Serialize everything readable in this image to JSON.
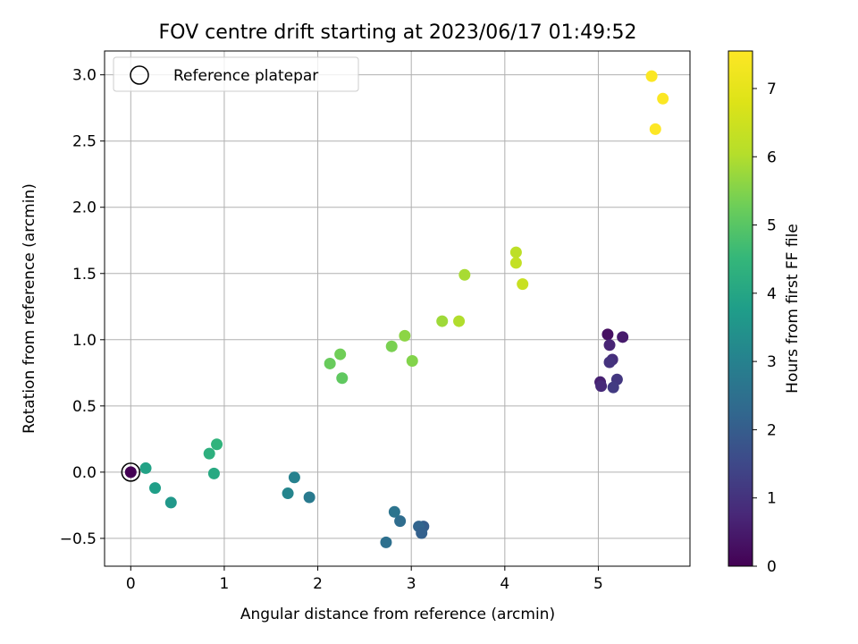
{
  "chart_data": {
    "type": "scatter",
    "title": "FOV centre drift starting at 2023/06/17 01:49:52",
    "xlabel": "Angular distance from reference (arcmin)",
    "ylabel": "Rotation from reference (arcmin)",
    "xlim": [
      -0.28,
      5.98
    ],
    "ylim": [
      -0.71,
      3.18
    ],
    "xticks": [
      0,
      1,
      2,
      3,
      4,
      5
    ],
    "xtick_labels": [
      "0",
      "1",
      "2",
      "3",
      "4",
      "5"
    ],
    "yticks": [
      -0.5,
      0.0,
      0.5,
      1.0,
      1.5,
      2.0,
      2.5,
      3.0
    ],
    "ytick_labels": [
      "−0.5",
      "0.0",
      "0.5",
      "1.0",
      "1.5",
      "2.0",
      "2.5",
      "3.0"
    ],
    "grid": true,
    "colormap": "viridis",
    "colorbar": {
      "label": "Hours from first FF file",
      "range": [
        0,
        7.55
      ],
      "ticks": [
        0,
        1,
        2,
        3,
        4,
        5,
        6,
        7
      ],
      "tick_labels": [
        "0",
        "1",
        "2",
        "3",
        "4",
        "5",
        "6",
        "7"
      ]
    },
    "legend": {
      "entries": [
        {
          "label": "Reference platepar",
          "marker": "open-circle"
        }
      ],
      "placement": "upper-left"
    },
    "reference_point": {
      "x": 0.0,
      "y": 0.0
    },
    "points": [
      {
        "x": 0.0,
        "y": 0.0,
        "hours": 0.0
      },
      {
        "x": 5.1,
        "y": 1.04,
        "hours": 0.3
      },
      {
        "x": 5.26,
        "y": 1.02,
        "hours": 0.5
      },
      {
        "x": 5.12,
        "y": 0.96,
        "hours": 0.7
      },
      {
        "x": 5.15,
        "y": 0.85,
        "hours": 0.9
      },
      {
        "x": 5.12,
        "y": 0.83,
        "hours": 1.0
      },
      {
        "x": 5.2,
        "y": 0.7,
        "hours": 1.1
      },
      {
        "x": 5.02,
        "y": 0.68,
        "hours": 0.6
      },
      {
        "x": 5.03,
        "y": 0.65,
        "hours": 0.8
      },
      {
        "x": 5.16,
        "y": 0.64,
        "hours": 1.2
      },
      {
        "x": 3.13,
        "y": -0.41,
        "hours": 2.0
      },
      {
        "x": 3.08,
        "y": -0.41,
        "hours": 2.2
      },
      {
        "x": 3.11,
        "y": -0.46,
        "hours": 2.1
      },
      {
        "x": 2.88,
        "y": -0.37,
        "hours": 2.4
      },
      {
        "x": 2.82,
        "y": -0.3,
        "hours": 2.6
      },
      {
        "x": 2.73,
        "y": -0.53,
        "hours": 2.5
      },
      {
        "x": 1.91,
        "y": -0.19,
        "hours": 2.8
      },
      {
        "x": 1.75,
        "y": -0.04,
        "hours": 3.0
      },
      {
        "x": 1.68,
        "y": -0.16,
        "hours": 3.1
      },
      {
        "x": 0.43,
        "y": -0.23,
        "hours": 3.6
      },
      {
        "x": 0.26,
        "y": -0.12,
        "hours": 3.8
      },
      {
        "x": 0.16,
        "y": 0.03,
        "hours": 3.9
      },
      {
        "x": 0.89,
        "y": -0.01,
        "hours": 4.1
      },
      {
        "x": 0.84,
        "y": 0.14,
        "hours": 4.3
      },
      {
        "x": 0.92,
        "y": 0.21,
        "hours": 4.4
      },
      {
        "x": 2.13,
        "y": 0.82,
        "hours": 5.2
      },
      {
        "x": 2.24,
        "y": 0.89,
        "hours": 5.3
      },
      {
        "x": 2.26,
        "y": 0.71,
        "hours": 5.1
      },
      {
        "x": 2.79,
        "y": 0.95,
        "hours": 5.4
      },
      {
        "x": 2.93,
        "y": 1.03,
        "hours": 5.6
      },
      {
        "x": 3.01,
        "y": 0.84,
        "hours": 5.5
      },
      {
        "x": 3.33,
        "y": 1.14,
        "hours": 5.8
      },
      {
        "x": 3.51,
        "y": 1.14,
        "hours": 6.0
      },
      {
        "x": 3.57,
        "y": 1.49,
        "hours": 5.9
      },
      {
        "x": 4.12,
        "y": 1.66,
        "hours": 6.2
      },
      {
        "x": 4.12,
        "y": 1.58,
        "hours": 6.3
      },
      {
        "x": 4.19,
        "y": 1.42,
        "hours": 6.4
      },
      {
        "x": 5.57,
        "y": 2.99,
        "hours": 7.5
      },
      {
        "x": 5.69,
        "y": 2.82,
        "hours": 7.5
      },
      {
        "x": 5.61,
        "y": 2.59,
        "hours": 7.55
      }
    ]
  }
}
